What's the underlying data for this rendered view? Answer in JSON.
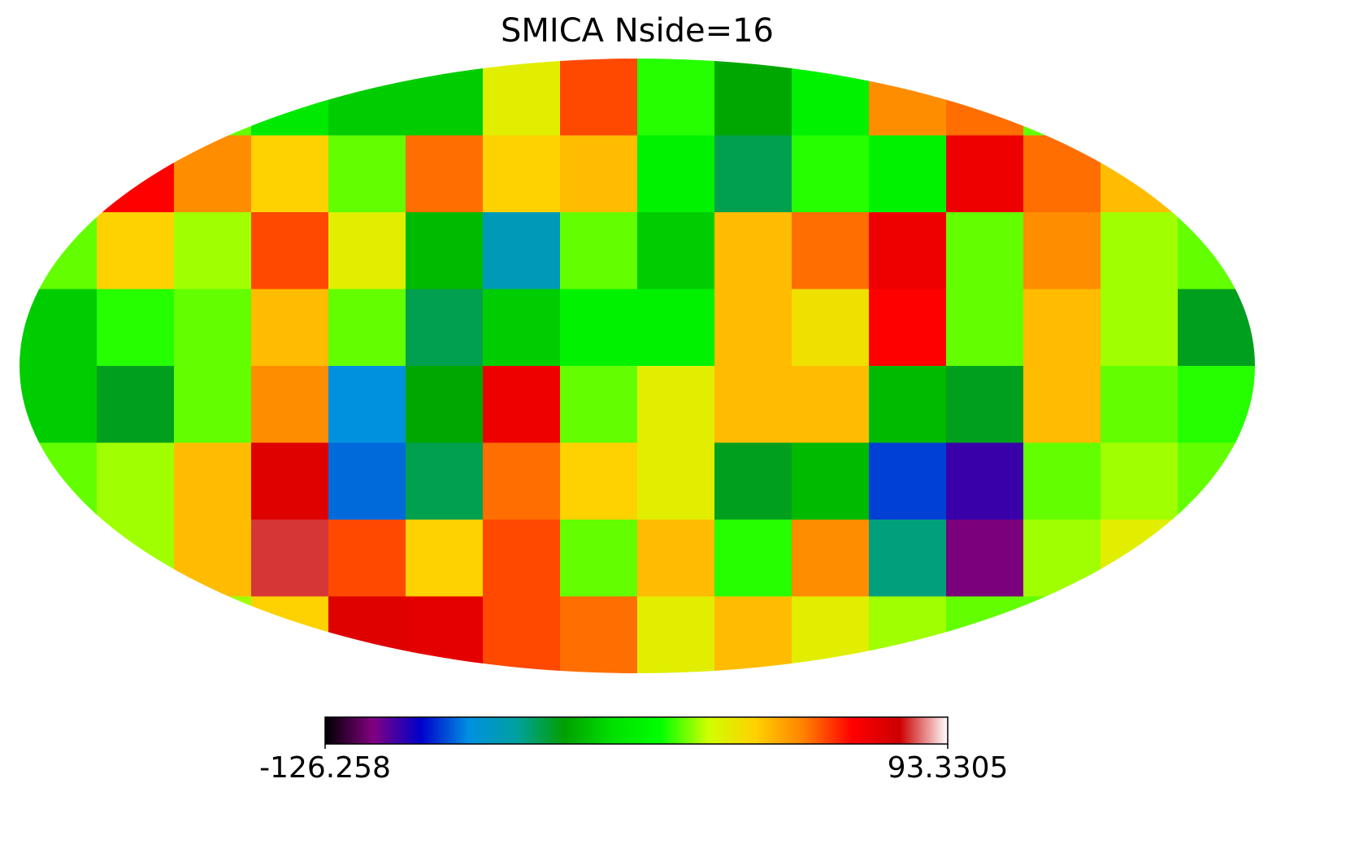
{
  "chart_data": {
    "type": "heatmap",
    "title": "SMICA Nside=16",
    "projection": "mollweide",
    "values": [
      [
        null,
        null,
        0,
        -20,
        -30,
        -30,
        15,
        50,
        -5,
        -40,
        -15,
        40,
        45,
        0,
        null,
        null
      ],
      [
        null,
        60,
        40,
        25,
        0,
        45,
        25,
        30,
        -15,
        -50,
        -5,
        -15,
        65,
        45,
        30,
        null
      ],
      [
        0,
        25,
        5,
        50,
        15,
        -35,
        -65,
        0,
        -30,
        30,
        45,
        65,
        0,
        40,
        5,
        0
      ],
      [
        -30,
        -5,
        0,
        30,
        0,
        -50,
        -30,
        -15,
        -15,
        30,
        20,
        60,
        0,
        30,
        5,
        -45
      ],
      [
        -30,
        -45,
        0,
        40,
        -75,
        -40,
        65,
        0,
        15,
        30,
        30,
        -35,
        -45,
        30,
        0,
        -5
      ],
      [
        0,
        5,
        30,
        70,
        -80,
        -50,
        45,
        25,
        15,
        -45,
        -35,
        -85,
        -100,
        0,
        5,
        0
      ],
      [
        null,
        5,
        30,
        80,
        50,
        25,
        50,
        0,
        30,
        -5,
        40,
        -55,
        -110,
        5,
        15,
        null
      ],
      [
        null,
        null,
        5,
        25,
        70,
        68,
        50,
        45,
        15,
        30,
        15,
        5,
        0,
        0,
        null,
        null
      ]
    ],
    "zlim": [
      -126.258,
      93.3305
    ],
    "zticks": [
      -126.258,
      93.3305
    ],
    "colormap": [
      "#000000",
      "#800080",
      "#0000cc",
      "#0090e0",
      "#00a0a0",
      "#00a000",
      "#00e000",
      "#00ff00",
      "#d0ff00",
      "#ffd000",
      "#ff8000",
      "#ff0000",
      "#cc0000",
      "#ffffff"
    ]
  }
}
